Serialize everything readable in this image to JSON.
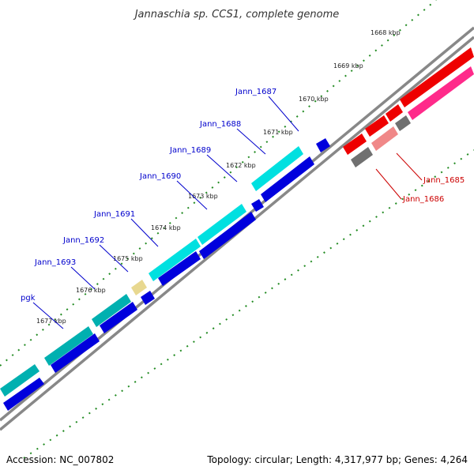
{
  "title": "Jannaschia sp. CCS1, complete genome",
  "footer": {
    "accession": "Accession: NC_007802",
    "summary": "Topology: circular; Length: 4,317,977 bp; Genes: 4,264"
  },
  "kbp_ticks": [
    {
      "label": "1668 kbp"
    },
    {
      "label": "1669 kbp"
    },
    {
      "label": "1670 kbp"
    },
    {
      "label": "1671 kbp"
    },
    {
      "label": "1672 kbp"
    },
    {
      "label": "1673 kbp"
    },
    {
      "label": "1674 kbp"
    },
    {
      "label": "1675 kbp"
    },
    {
      "label": "1676 kbp"
    },
    {
      "label": "1677 kbp"
    }
  ],
  "gene_labels": [
    {
      "name": "Jann_1687",
      "color": "#0000cc"
    },
    {
      "name": "Jann_1688",
      "color": "#0000cc"
    },
    {
      "name": "Jann_1689",
      "color": "#0000cc"
    },
    {
      "name": "Jann_1690",
      "color": "#0000cc"
    },
    {
      "name": "Jann_1691",
      "color": "#0000cc"
    },
    {
      "name": "Jann_1692",
      "color": "#0000cc"
    },
    {
      "name": "Jann_1693",
      "color": "#0000cc"
    },
    {
      "name": "pgk",
      "color": "#0000cc"
    },
    {
      "name": "Jann_1685",
      "color": "#cc0000"
    },
    {
      "name": "Jann_1686",
      "color": "#cc0000"
    }
  ],
  "colors": {
    "cds_forward": "#0000dd",
    "gene_forward": "#00e0e0",
    "gene_forward_dark": "#00b0b0",
    "trna": "#e8d890",
    "cds_reverse": "#ee0000",
    "gene_reverse_pink": "#ff2a8a",
    "gene_reverse_light": "#f08888",
    "gray_feature": "#707070",
    "backbone": "#808080",
    "tick_green": "#228b22"
  }
}
